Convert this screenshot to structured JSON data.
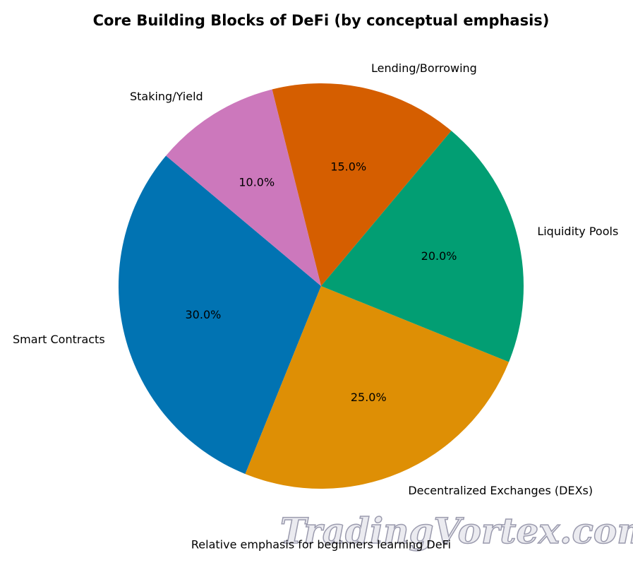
{
  "chart_data": {
    "type": "pie",
    "title": "Core Building Blocks of DeFi (by conceptual emphasis)",
    "xlabel": "Relative emphasis for beginners learning DeFi",
    "categories": [
      "Smart Contracts",
      "Decentralized Exchanges (DEXs)",
      "Liquidity Pools",
      "Lending/Borrowing",
      "Staking/Yield"
    ],
    "values": [
      30,
      25,
      20,
      15,
      10
    ],
    "value_labels": [
      "30.0%",
      "25.0%",
      "20.0%",
      "15.0%",
      "10.0%"
    ],
    "colors": [
      "#0173b2",
      "#de8f05",
      "#029e73",
      "#d55e00",
      "#cc78bc"
    ],
    "start_angle": 140,
    "watermark": "TradingVortex.com"
  }
}
